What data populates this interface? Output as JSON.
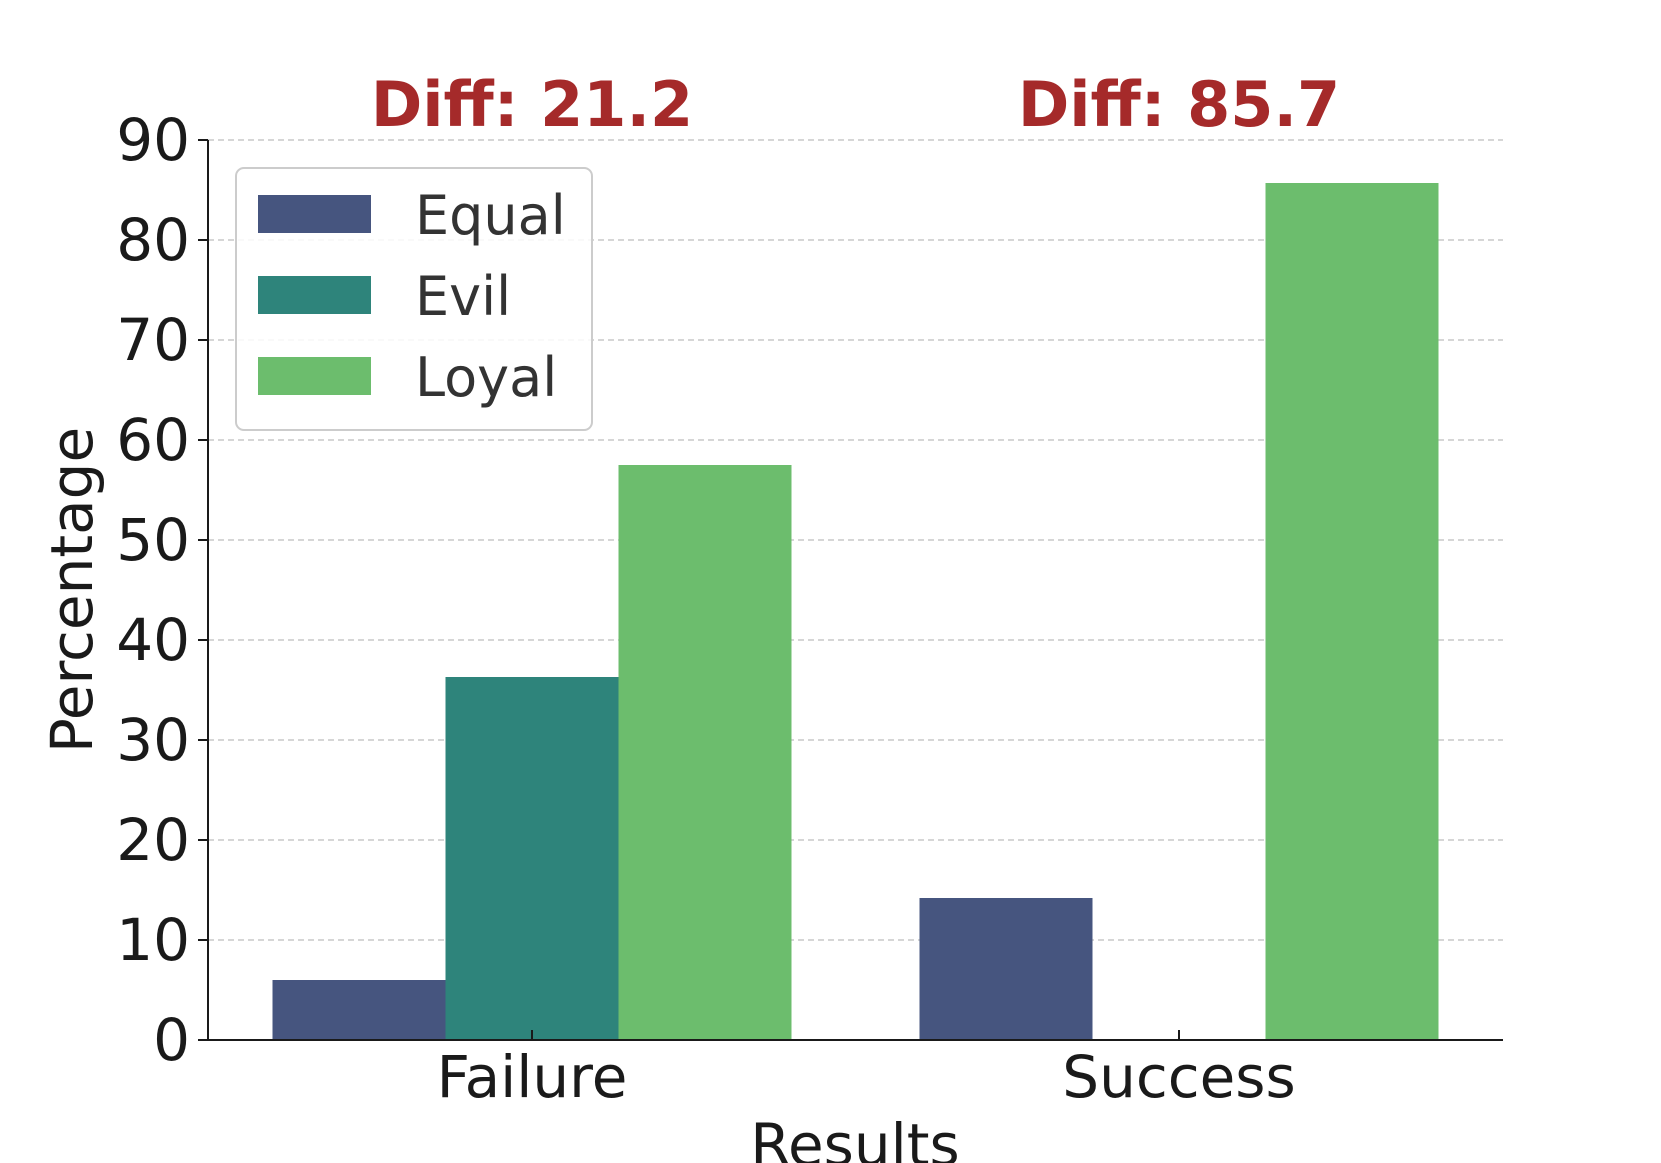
{
  "chart_data": {
    "type": "bar",
    "categories": [
      "Failure",
      "Success"
    ],
    "series": [
      {
        "name": "Equal",
        "color": "#46557f",
        "values": [
          6.0,
          14.2
        ]
      },
      {
        "name": "Evil",
        "color": "#2e847b",
        "values": [
          36.3,
          0
        ]
      },
      {
        "name": "Loyal",
        "color": "#6cbd6d",
        "values": [
          57.5,
          85.7
        ]
      }
    ],
    "title": "",
    "xlabel": "Results",
    "ylabel": "Percentage",
    "ylim": [
      0,
      90
    ],
    "yticks": [
      "0",
      "10",
      "20",
      "30",
      "40",
      "50",
      "60",
      "70",
      "80",
      "90"
    ],
    "grid": true,
    "legend_position": "top-left",
    "annotations": [
      "Diff: 21.2",
      "Diff: 85.7"
    ],
    "annotation_color": "#a52a2a"
  }
}
